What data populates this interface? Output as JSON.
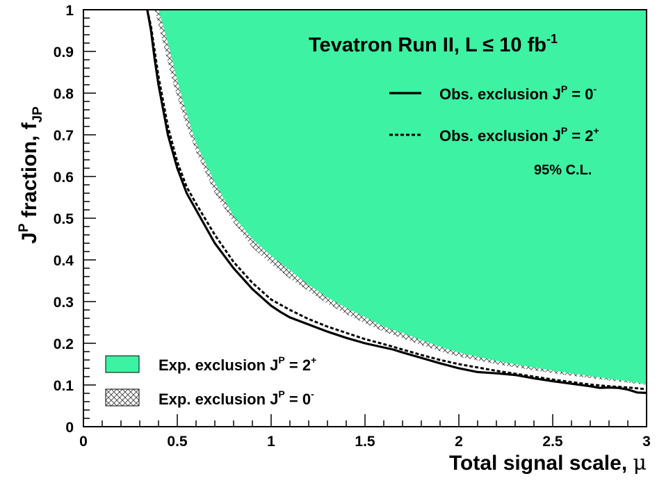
{
  "chart_data": {
    "type": "area",
    "title": {
      "prefix": "Tevatron Run II, L ",
      "leq": "≤",
      "mid": " 10 fb",
      "sup": "-1"
    },
    "xlabel": {
      "text": "Total signal scale, ",
      "symbol": "μ"
    },
    "ylabel": {
      "J": "J",
      "P": "P",
      "text": " fraction, f",
      "sub": "JP"
    },
    "xlim": [
      0,
      3
    ],
    "ylim": [
      0,
      1
    ],
    "x_ticks": [
      "0",
      "0.5",
      "1",
      "1.5",
      "2",
      "2.5",
      "3"
    ],
    "y_ticks": [
      "0",
      "0.1",
      "0.2",
      "0.3",
      "0.4",
      "0.5",
      "0.6",
      "0.7",
      "0.8",
      "0.9",
      "1"
    ],
    "cl_label": "95% C.L.",
    "legend_top": [
      {
        "style": "solid",
        "label": "Obs. exclusion J",
        "sup1": "P",
        "eq": " = 0",
        "sup2": "-"
      },
      {
        "style": "dashed",
        "label": "Obs. exclusion J",
        "sup1": "P",
        "eq": " = 2",
        "sup2": "+"
      }
    ],
    "legend_bottom": [
      {
        "style": "fill",
        "color": "#3df2a2",
        "label": "Exp. exclusion J",
        "sup1": "P",
        "eq": " = 2",
        "sup2": "+"
      },
      {
        "style": "hatch",
        "label": "Exp. exclusion J",
        "sup1": "P",
        "eq": " = 0",
        "sup2": "-"
      }
    ],
    "series": [
      {
        "label": "Exp. exclusion J^P = 2+",
        "style": "fill",
        "color": "#3df2a2",
        "x": [
          0.4,
          0.45,
          0.5,
          0.55,
          0.6,
          0.7,
          0.8,
          0.9,
          1.0,
          1.1,
          1.2,
          1.3,
          1.4,
          1.5,
          1.6,
          1.7,
          1.8,
          1.9,
          2.0,
          2.2,
          2.4,
          2.6,
          2.8,
          2.95,
          3.0
        ],
        "y": [
          1.0,
          0.92,
          0.83,
          0.75,
          0.68,
          0.585,
          0.505,
          0.45,
          0.41,
          0.375,
          0.34,
          0.31,
          0.285,
          0.263,
          0.24,
          0.225,
          0.208,
          0.192,
          0.178,
          0.158,
          0.142,
          0.128,
          0.115,
          0.106,
          0.1
        ]
      },
      {
        "label": "Exp. exclusion J^P = 0-",
        "style": "hatch",
        "x": [
          0.38,
          0.43,
          0.48,
          0.55,
          0.6,
          0.7,
          0.8,
          0.9,
          1.0,
          1.1,
          1.2,
          1.3,
          1.4,
          1.5,
          1.6,
          1.7,
          1.8,
          1.9,
          2.0,
          2.2,
          2.4,
          2.6,
          2.8,
          2.95,
          3.0
        ],
        "y": [
          1.0,
          0.91,
          0.82,
          0.72,
          0.66,
          0.56,
          0.49,
          0.43,
          0.39,
          0.355,
          0.325,
          0.295,
          0.27,
          0.248,
          0.228,
          0.212,
          0.196,
          0.181,
          0.168,
          0.15,
          0.135,
          0.122,
          0.111,
          0.103,
          0.1
        ]
      },
      {
        "label": "Obs. exclusion J^P = 0-",
        "style": "solid",
        "x": [
          0.34,
          0.36,
          0.38,
          0.4,
          0.45,
          0.5,
          0.55,
          0.6,
          0.7,
          0.8,
          0.9,
          1.0,
          1.05,
          1.1,
          1.2,
          1.3,
          1.4,
          1.5,
          1.6,
          1.65,
          1.7,
          1.8,
          1.9,
          2.0,
          2.1,
          2.2,
          2.3,
          2.4,
          2.5,
          2.6,
          2.7,
          2.75,
          2.8,
          2.85,
          2.9,
          2.95,
          3.0
        ],
        "y": [
          1.0,
          0.95,
          0.88,
          0.82,
          0.7,
          0.62,
          0.56,
          0.52,
          0.44,
          0.38,
          0.33,
          0.29,
          0.275,
          0.262,
          0.245,
          0.228,
          0.213,
          0.2,
          0.19,
          0.185,
          0.178,
          0.165,
          0.152,
          0.14,
          0.131,
          0.128,
          0.124,
          0.116,
          0.109,
          0.103,
          0.097,
          0.093,
          0.094,
          0.093,
          0.089,
          0.082,
          0.081
        ]
      },
      {
        "label": "Obs. exclusion J^P = 2+",
        "style": "dashed",
        "x": [
          0.34,
          0.36,
          0.38,
          0.4,
          0.45,
          0.5,
          0.55,
          0.6,
          0.7,
          0.8,
          0.9,
          1.0,
          1.1,
          1.2,
          1.3,
          1.4,
          1.5,
          1.6,
          1.7,
          1.8,
          1.9,
          2.0,
          2.1,
          2.2,
          2.3,
          2.4,
          2.5,
          2.6,
          2.7,
          2.8,
          2.9,
          3.0
        ],
        "y": [
          1.0,
          0.96,
          0.9,
          0.84,
          0.72,
          0.635,
          0.575,
          0.535,
          0.46,
          0.395,
          0.345,
          0.305,
          0.28,
          0.258,
          0.24,
          0.225,
          0.21,
          0.198,
          0.185,
          0.172,
          0.16,
          0.15,
          0.142,
          0.134,
          0.127,
          0.12,
          0.113,
          0.107,
          0.101,
          0.097,
          0.094,
          0.09
        ]
      }
    ],
    "grid": false,
    "legend_placement": "top-right and bottom-left"
  }
}
